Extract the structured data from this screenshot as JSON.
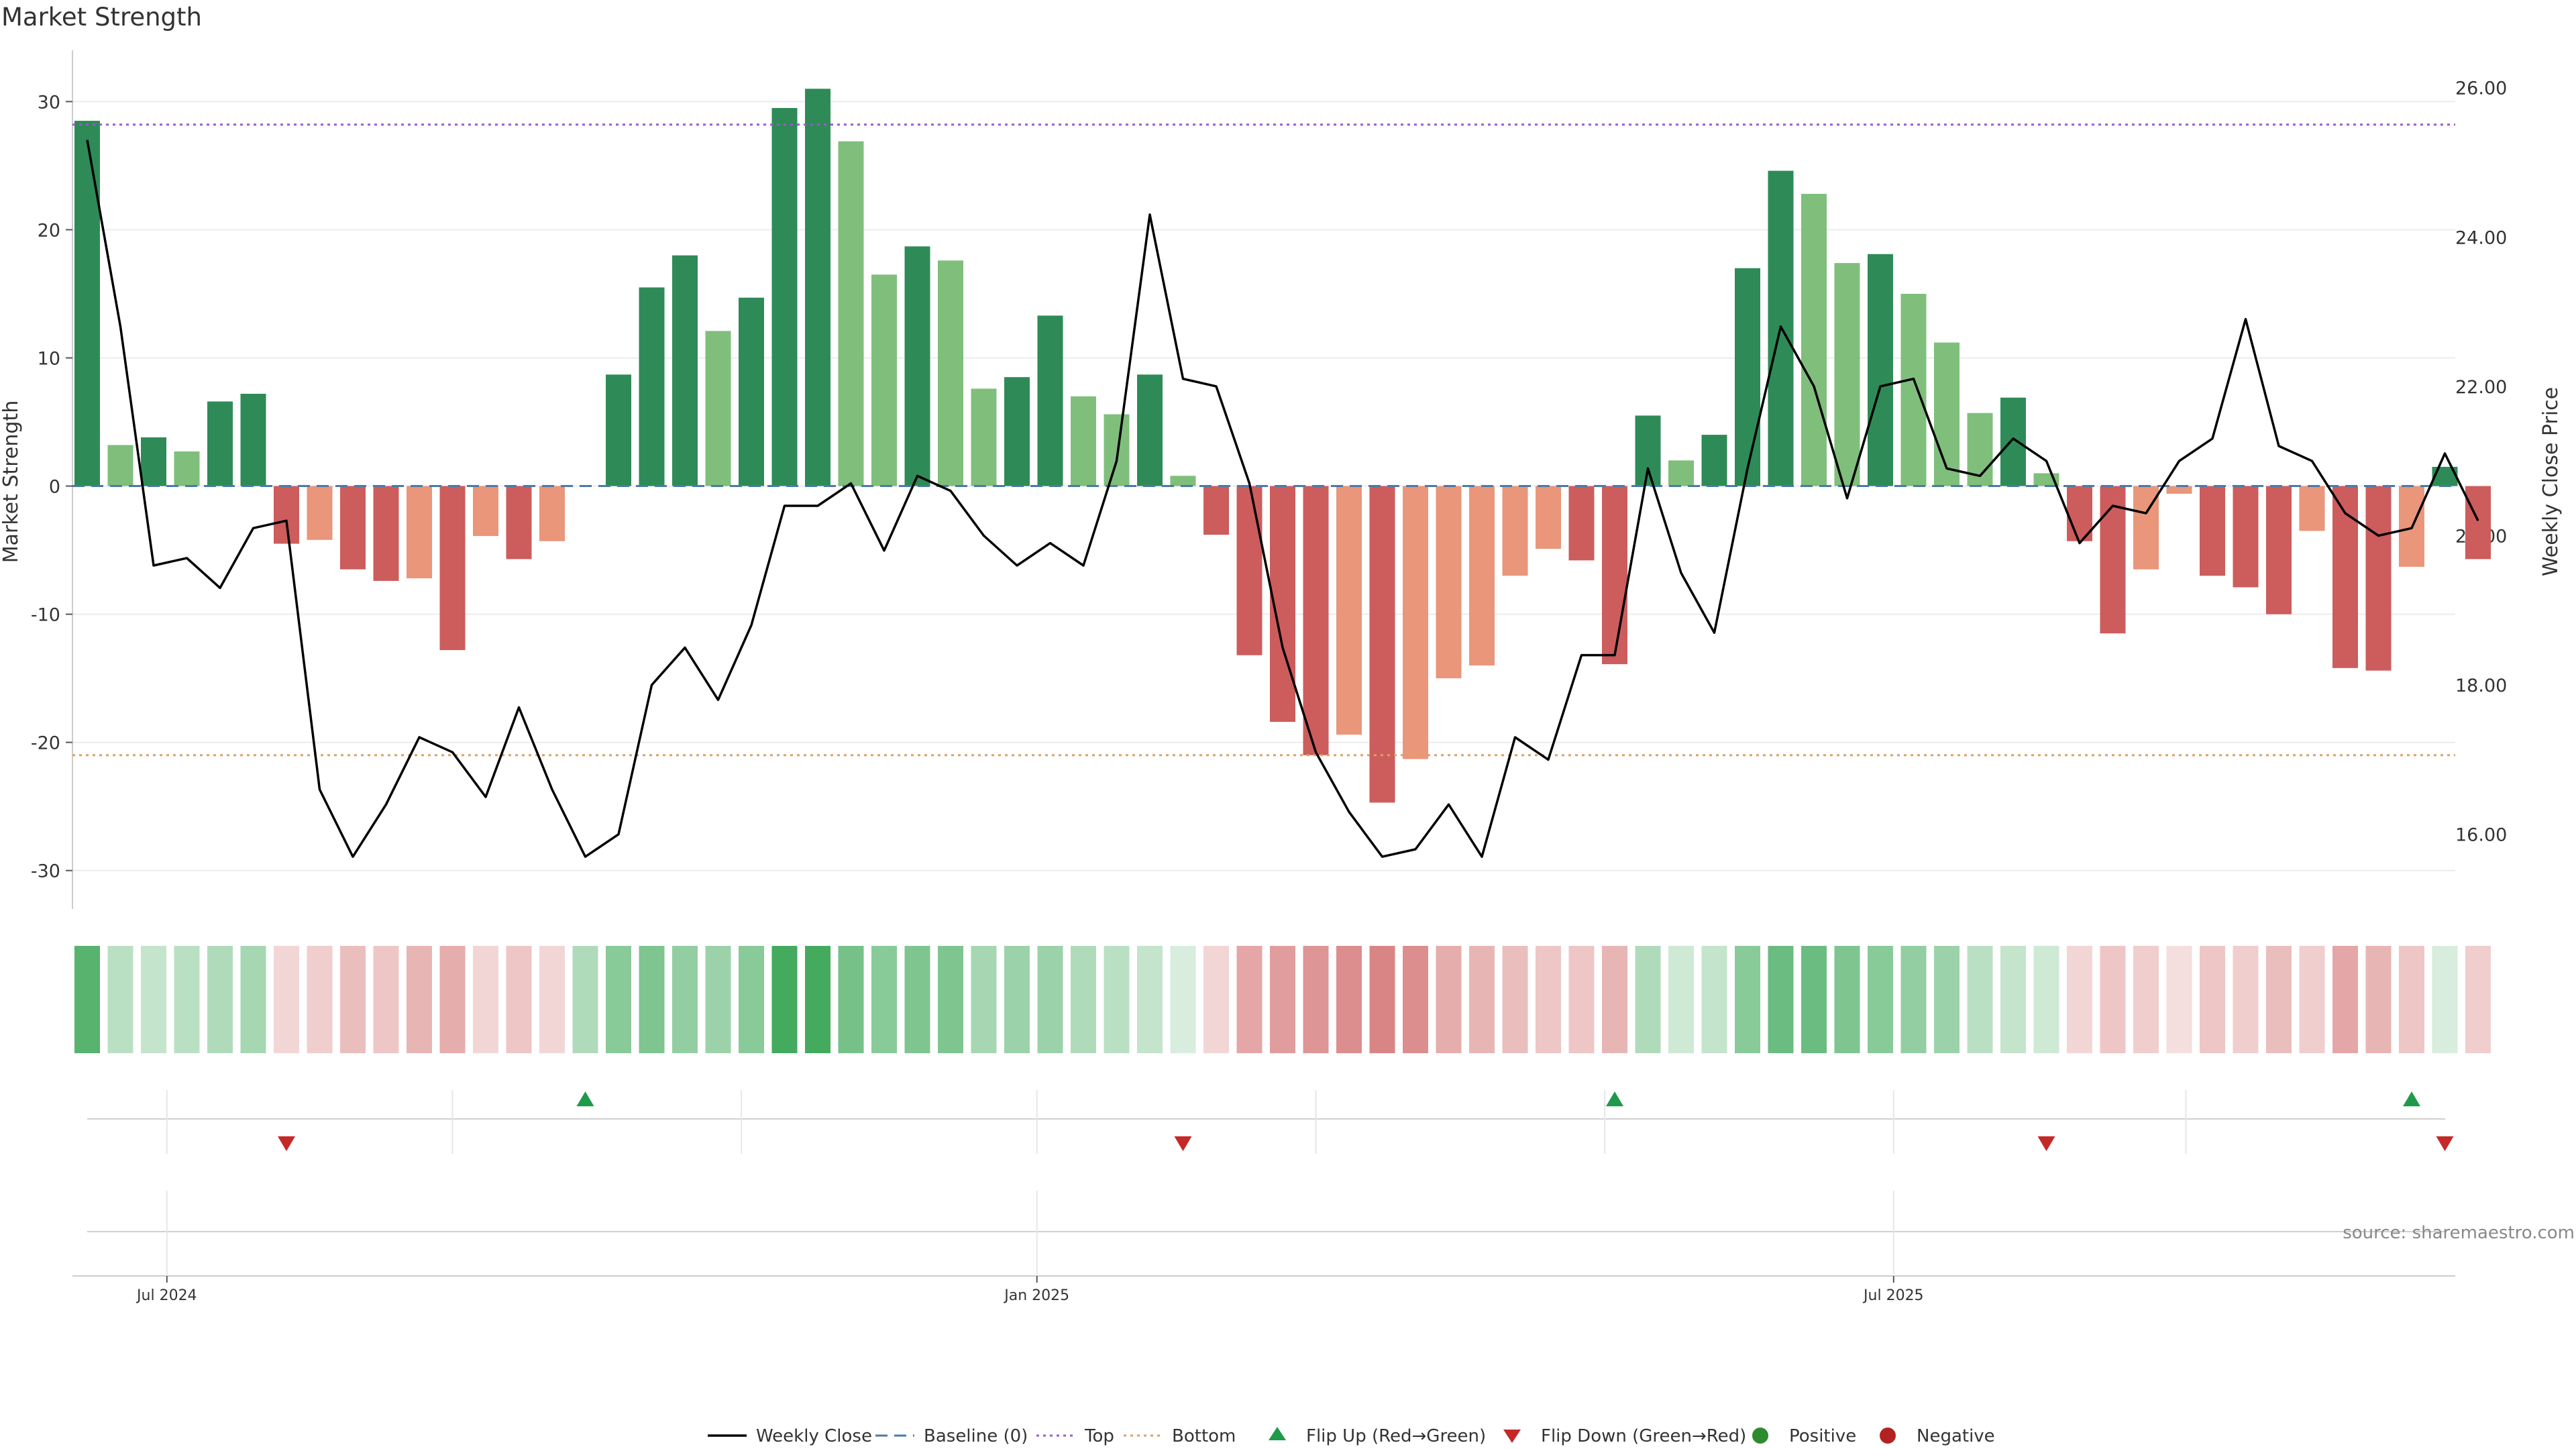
{
  "chart_data": {
    "type": "bar",
    "title": "Market Strength",
    "ylabel": "Market Strength",
    "y2label": "Weekly Close Price",
    "ylim": [
      -33,
      34
    ],
    "y2lim": [
      15.0,
      26.5
    ],
    "y_ticks": [
      30,
      20,
      10,
      0,
      -10,
      -20,
      -30
    ],
    "y2_ticks": [
      26.0,
      24.0,
      22.0,
      20.0,
      18.0,
      16.0
    ],
    "top_line": 28.2,
    "bottom_line": -21.0,
    "baseline": 0,
    "grid": true,
    "x_tick_labels": [
      {
        "label": "Jul 2024",
        "week_index": 2.4
      },
      {
        "label": "Jan 2025",
        "week_index": 28.6
      },
      {
        "label": "Jul 2025",
        "week_index": 54.4
      }
    ],
    "strength": [
      28.5,
      3.2,
      3.8,
      2.7,
      6.6,
      7.2,
      -4.5,
      -4.2,
      -6.5,
      -7.4,
      -7.2,
      -12.8,
      -3.9,
      -5.7,
      -4.3,
      0,
      8.7,
      15.5,
      18.0,
      12.1,
      14.7,
      29.5,
      31.0,
      26.9,
      16.5,
      18.7,
      17.6,
      7.6,
      8.5,
      13.3,
      7.0,
      5.6,
      8.7,
      0.8,
      -3.8,
      -13.2,
      -18.4,
      -21.0,
      -19.4,
      -24.7,
      -21.3,
      -15.0,
      -14.0,
      -7.0,
      -4.9,
      -5.8,
      -13.9,
      5.5,
      2.0,
      4.0,
      17.0,
      24.6,
      22.8,
      17.4,
      18.1,
      15.0,
      11.2,
      5.7,
      6.9,
      1.0,
      -4.3,
      -11.5,
      -6.5,
      -0.6,
      -7.0,
      -7.9,
      -10.0,
      -3.5,
      -14.2,
      -14.4,
      -6.3,
      1.5,
      -5.7
    ],
    "strength_shade": [
      "dark",
      "light",
      "dark",
      "light",
      "dark",
      "dark",
      "dark",
      "light",
      "dark",
      "dark",
      "light",
      "dark",
      "light",
      "dark",
      "light",
      "light",
      "dark",
      "dark",
      "dark",
      "light",
      "dark",
      "dark",
      "dark",
      "light",
      "light",
      "dark",
      "light",
      "light",
      "dark",
      "dark",
      "light",
      "light",
      "dark",
      "light",
      "dark",
      "dark",
      "dark",
      "dark",
      "light",
      "dark",
      "light",
      "light",
      "light",
      "light",
      "light",
      "dark",
      "dark",
      "dark",
      "light",
      "dark",
      "dark",
      "dark",
      "light",
      "light",
      "dark",
      "light",
      "light",
      "light",
      "dark",
      "light",
      "dark",
      "dark",
      "light",
      "light",
      "dark",
      "dark",
      "dark",
      "light",
      "dark",
      "dark",
      "light",
      "dark",
      "dark"
    ],
    "weekly_close": [
      25.3,
      22.8,
      19.6,
      19.7,
      19.3,
      20.1,
      20.2,
      16.6,
      15.7,
      16.4,
      17.3,
      17.1,
      16.5,
      17.7,
      16.6,
      15.7,
      16.0,
      18.0,
      18.5,
      17.8,
      18.8,
      20.4,
      20.4,
      20.7,
      19.8,
      20.8,
      20.6,
      20.0,
      19.6,
      19.9,
      19.6,
      21.0,
      24.3,
      22.1,
      22.0,
      20.7,
      18.5,
      17.1,
      16.3,
      15.7,
      15.8,
      16.4,
      15.7,
      17.3,
      17.0,
      18.4,
      18.4,
      20.9,
      19.5,
      18.7,
      20.9,
      22.8,
      22.0,
      20.5,
      22.0,
      22.1,
      20.9,
      20.8,
      21.3,
      21.0,
      19.9,
      20.4,
      20.3,
      21.0,
      21.3,
      22.9,
      21.2,
      21.0,
      20.3,
      20.0,
      20.1,
      21.1,
      20.2
    ],
    "heat_levels": [
      0.85,
      0.35,
      0.3,
      0.35,
      0.4,
      0.45,
      0.25,
      0.3,
      0.4,
      0.35,
      0.45,
      0.5,
      0.25,
      0.35,
      0.25,
      0.4,
      0.6,
      0.65,
      0.55,
      0.5,
      0.6,
      0.95,
      0.95,
      0.7,
      0.6,
      0.65,
      0.65,
      0.45,
      0.5,
      0.5,
      0.4,
      0.35,
      0.3,
      0.2,
      0.25,
      0.55,
      0.6,
      0.65,
      0.7,
      0.75,
      0.7,
      0.5,
      0.45,
      0.4,
      0.35,
      0.35,
      0.45,
      0.4,
      0.25,
      0.3,
      0.6,
      0.75,
      0.75,
      0.65,
      0.6,
      0.55,
      0.5,
      0.35,
      0.3,
      0.25,
      0.25,
      0.35,
      0.3,
      0.2,
      0.35,
      0.3,
      0.4,
      0.3,
      0.55,
      0.45,
      0.35,
      0.2,
      0.3
    ],
    "flip_up_weeks": [
      15,
      46,
      70
    ],
    "flip_down_weeks": [
      6,
      33,
      59,
      71
    ],
    "colors": {
      "positive_dark": "#2e8b57",
      "positive_light": "#7fbf7b",
      "negative_dark": "#cd5c5c",
      "negative_light": "#e9967a",
      "close_line": "#000000",
      "baseline": "#4a7aa8",
      "top_line": "#9b59d0",
      "bottom_line": "#e0a060",
      "flip_up": "#1e9a4a",
      "flip_down": "#c62828",
      "heat_positive": "#3aa655",
      "heat_negative": "#cd5c5c"
    }
  },
  "legend": [
    {
      "label": "Weekly Close",
      "marker": "solid-line",
      "color": "#000000"
    },
    {
      "label": "Baseline (0)",
      "marker": "dashed-line",
      "color": "#4a7aa8"
    },
    {
      "label": "Top",
      "marker": "dotted-line",
      "color": "#9b59d0"
    },
    {
      "label": "Bottom",
      "marker": "dotted-line",
      "color": "#e0a060"
    },
    {
      "label": "Flip Up (Red→Green)",
      "marker": "triangle-up",
      "color": "#1e9a4a"
    },
    {
      "label": "Flip Down (Green→Red)",
      "marker": "triangle-down",
      "color": "#c62828"
    },
    {
      "label": "Positive",
      "marker": "circle",
      "color": "#2e8b2e"
    },
    {
      "label": "Negative",
      "marker": "circle",
      "color": "#b22222"
    }
  ],
  "source": "source: sharemaestro.com"
}
